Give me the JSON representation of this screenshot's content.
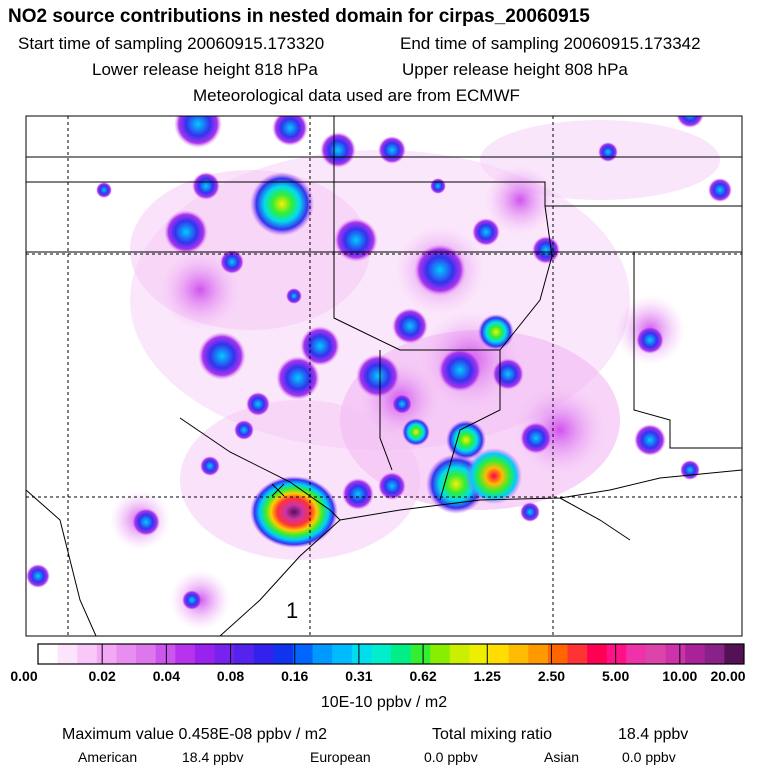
{
  "header": {
    "title": "NO2 source contributions in nested domain for cirpas_20060915",
    "start_label": "Start time of sampling 20060915.173320",
    "end_label": "End time of sampling 20060915.173342",
    "lower_label": "Lower release height  818 hPa",
    "upper_label": "Upper release height  808 hPa",
    "met_label": "Meteorological data used are from ECMWF"
  },
  "map": {
    "release_marker": "1"
  },
  "colorbar": {
    "ticks": [
      "0.00",
      "0.02",
      "0.04",
      "0.08",
      "0.16",
      "0.31",
      "0.62",
      "1.25",
      "2.50",
      "5.00",
      "10.00",
      "20.00"
    ],
    "colors": [
      "#ffffff",
      "#fde4fd",
      "#f9c8f9",
      "#f3a8f5",
      "#e88ef0",
      "#de76ee",
      "#cc55ee",
      "#b733ee",
      "#9922ee",
      "#7722ee",
      "#5522ee",
      "#3322ee",
      "#1133ee",
      "#0066ff",
      "#0099ff",
      "#00bbff",
      "#00ddee",
      "#00eecc",
      "#00ee88",
      "#33ee33",
      "#88ee00",
      "#ccee00",
      "#eeee00",
      "#ffdd00",
      "#ffbb00",
      "#ff9900",
      "#ff6600",
      "#ff3333",
      "#ff0055",
      "#ff1188",
      "#ee33aa",
      "#dd44aa",
      "#cc33aa",
      "#aa2299",
      "#882288",
      "#551155"
    ],
    "units": "10E-10 ppbv / m2"
  },
  "summary": {
    "max_label": "Maximum value  0.458E-08 ppbv / m2",
    "total_label": "Total mixing ratio",
    "total_value": "18.4 ppbv",
    "american_label": "American",
    "american_value": "18.4 ppbv",
    "european_label": "European",
    "european_value": "0.0 ppbv",
    "asian_label": "Asian",
    "asian_value": "0.0 ppbv"
  }
}
